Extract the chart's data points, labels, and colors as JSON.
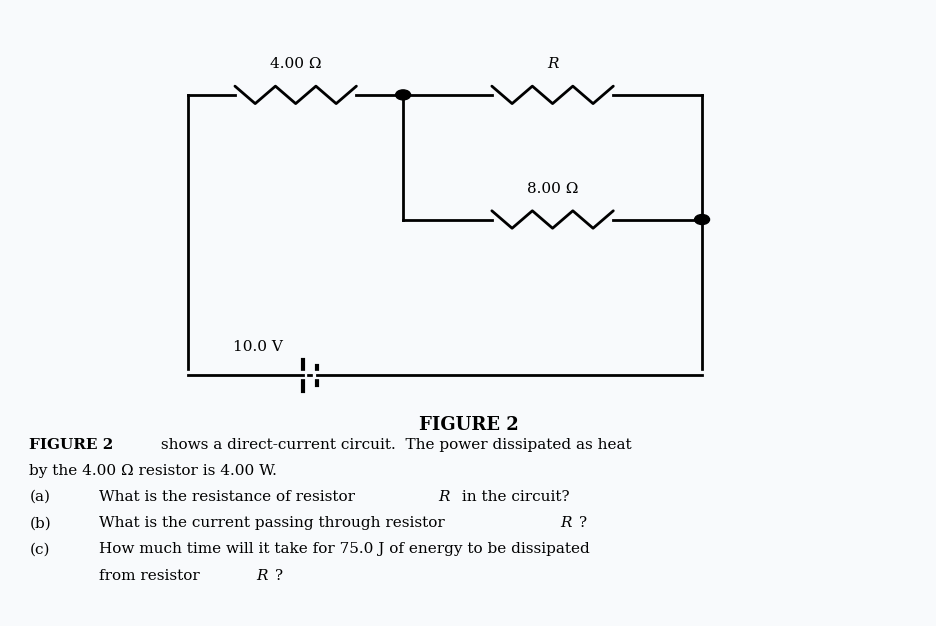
{
  "bg_color": "#f0f4f8",
  "figure_title": "FIGURE 2",
  "text_lines": [
    {
      "bold_part": "FIGURE 2",
      "normal_part": " shows a direct-current circuit.  The power dissipated as heat"
    },
    {
      "bold_part": "",
      "normal_part": "by the 4.00 Ω resistor is 4.00 W."
    },
    {
      "bold_part": "(a)",
      "normal_part": "   What is the resistance of resistor R in the circuit?"
    },
    {
      "bold_part": "(b)",
      "normal_part": "   What is the current passing through resistor R?"
    },
    {
      "bold_part": "(c)",
      "normal_part": "   How much time will it take for 75.0 J of energy to be dissipated"
    },
    {
      "bold_part": "",
      "normal_part": "        from resistor R?"
    }
  ],
  "resistor_4_label": "4.00 Ω",
  "resistor_8_label": "8.00 Ω",
  "resistor_R_label": "R",
  "voltage_label": "10.0 V",
  "line_color": "#000000",
  "line_width": 2.0
}
